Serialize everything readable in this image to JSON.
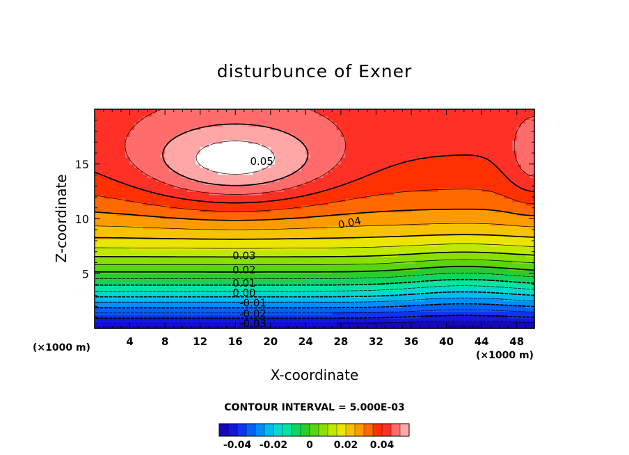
{
  "chart_data": {
    "type": "contour",
    "title": "disturbunce of Exner",
    "xlabel": "X-coordinate",
    "ylabel": "Z-coordinate",
    "x_unit_left": "(×1000 m)",
    "x_unit_right": "(×1000 m)",
    "xlim": [
      0,
      50
    ],
    "ylim": [
      0,
      20
    ],
    "x_ticks": [
      4,
      8,
      12,
      16,
      20,
      24,
      28,
      32,
      36,
      40,
      44,
      48
    ],
    "y_ticks": [
      5,
      10,
      15
    ],
    "contour_interval_text": "CONTOUR INTERVAL = 5.000E-03",
    "contour_interval": 0.005,
    "field": {
      "value_min": -0.05,
      "value_max": 0.055,
      "max_center_x": 16,
      "max_center_z": 15,
      "max_value": 0.055,
      "secondary_max_x": 50,
      "secondary_max_z": 15,
      "saddle_x": 43,
      "saddle_z": 15
    },
    "contour_labels": [
      {
        "text": "0.05",
        "x": 19,
        "z": 15.2
      },
      {
        "text": "0.04",
        "x": 29,
        "z": 9.6
      },
      {
        "text": "0.03",
        "x": 17,
        "z": 6.6
      },
      {
        "text": "0.02",
        "x": 17,
        "z": 5.3
      },
      {
        "text": "0.01",
        "x": 17,
        "z": 4.1
      },
      {
        "text": "0.00",
        "x": 17,
        "z": 3.2
      },
      {
        "text": "-0.01",
        "x": 18,
        "z": 2.3
      },
      {
        "text": "-0.02",
        "x": 18,
        "z": 1.3
      },
      {
        "text": "-0.03",
        "x": 18,
        "z": 0.4
      }
    ],
    "colorbar": {
      "range": [
        -0.05,
        0.055
      ],
      "tick_labels": [
        "-0.04",
        "-0.02",
        "0",
        "0.02",
        "0.04"
      ],
      "tick_values": [
        -0.04,
        -0.02,
        0,
        0.02,
        0.04
      ]
    },
    "grid": false,
    "legend": "colorbar-bottom"
  }
}
